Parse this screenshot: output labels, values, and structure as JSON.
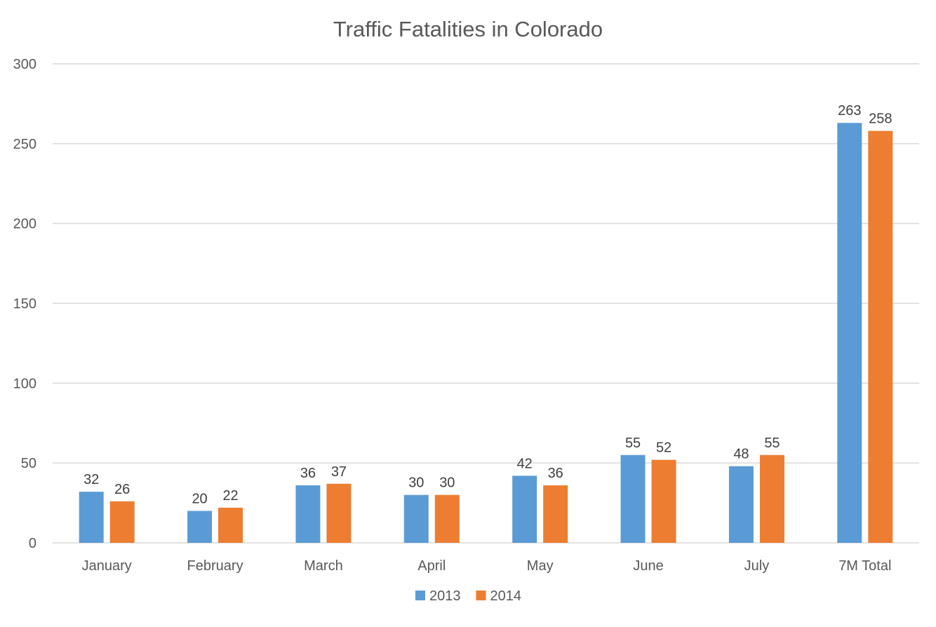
{
  "chart_data": {
    "type": "bar",
    "title": "Traffic Fatalities in Colorado",
    "xlabel": "",
    "ylabel": "",
    "categories": [
      "January",
      "February",
      "March",
      "April",
      "May",
      "June",
      "July",
      "7M Total"
    ],
    "series": [
      {
        "name": "2013",
        "values": [
          32,
          20,
          36,
          30,
          42,
          55,
          48,
          263
        ],
        "color": "#5b9bd5"
      },
      {
        "name": "2014",
        "values": [
          26,
          22,
          37,
          30,
          36,
          52,
          55,
          258
        ],
        "color": "#ed7d31"
      }
    ],
    "ylim": [
      0,
      300
    ],
    "yticks": [
      0,
      50,
      100,
      150,
      200,
      250,
      300
    ],
    "grid": true,
    "gridColor": "#d9d9d9",
    "data_labels": true,
    "legend": "bottom"
  }
}
